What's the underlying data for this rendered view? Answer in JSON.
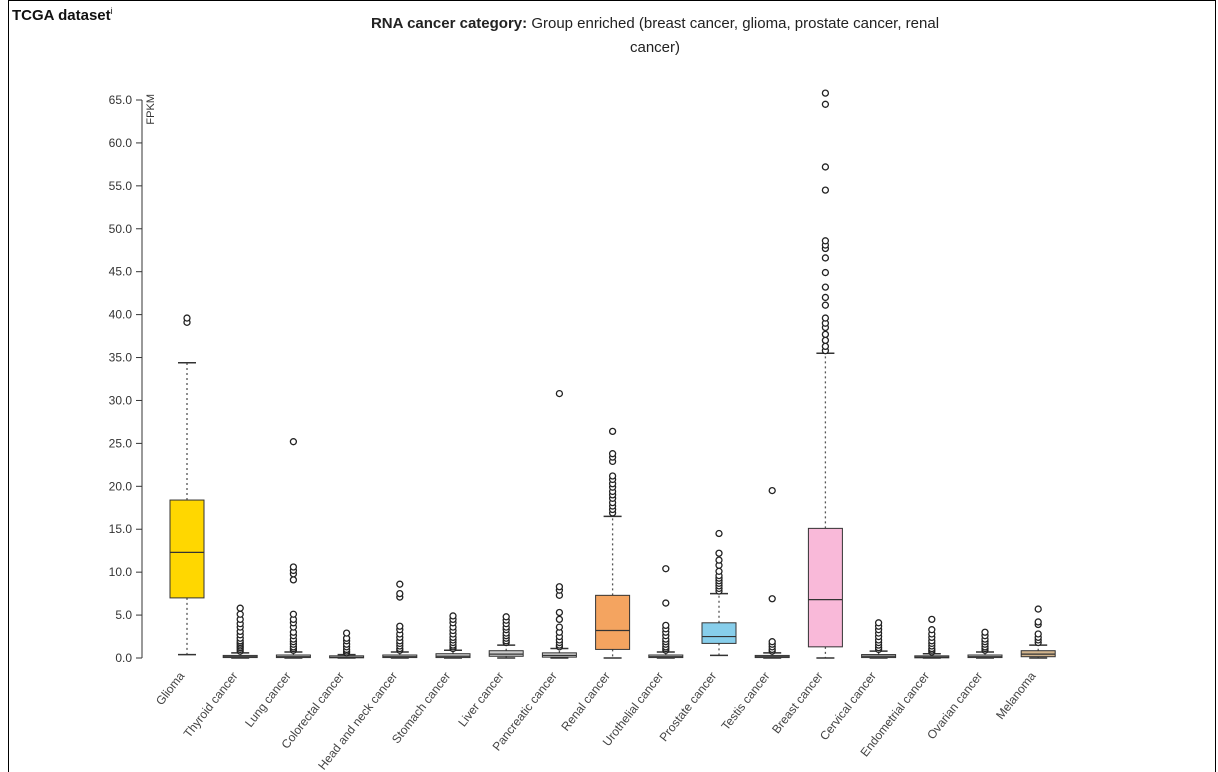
{
  "header": {
    "dataset_label": "TCGA dataset",
    "info_marker": "i",
    "category_label": "RNA cancer category:",
    "category_value": "Group enriched (breast cancer, glioma, prostate cancer, renal cancer)"
  },
  "chart_data": {
    "type": "boxplot",
    "ylabel": "FPKM",
    "ylim": [
      0,
      65
    ],
    "yticks": [
      "0.0",
      "5.0",
      "10.0",
      "15.0",
      "20.0",
      "25.0",
      "30.0",
      "35.0",
      "40.0",
      "45.0",
      "50.0",
      "55.0",
      "60.0",
      "65.0"
    ],
    "grid": false,
    "categories": [
      {
        "name": "Glioma",
        "color": "#FFD700",
        "q1": 7.0,
        "median": 12.3,
        "q3": 18.4,
        "whisker_low": 0.4,
        "whisker_high": 34.4,
        "outliers": [
          39.1,
          39.6
        ]
      },
      {
        "name": "Thyroid cancer",
        "color": "#cccccc",
        "q1": 0.05,
        "median": 0.15,
        "q3": 0.3,
        "whisker_low": 0.0,
        "whisker_high": 0.6,
        "outliers": [
          0.8,
          1.0,
          1.2,
          1.4,
          1.6,
          1.8,
          2.0,
          2.3,
          2.7,
          3.1,
          3.6,
          4.0,
          4.5,
          5.1,
          5.8
        ]
      },
      {
        "name": "Lung cancer",
        "color": "#cccccc",
        "q1": 0.05,
        "median": 0.15,
        "q3": 0.35,
        "whisker_low": 0.0,
        "whisker_high": 0.7,
        "outliers": [
          0.9,
          1.1,
          1.3,
          1.6,
          1.9,
          2.2,
          2.6,
          3.0,
          3.6,
          4.1,
          4.5,
          5.1,
          9.1,
          9.8,
          10.2,
          10.6,
          25.2
        ]
      },
      {
        "name": "Colorectal cancer",
        "color": "#cccccc",
        "q1": 0.02,
        "median": 0.08,
        "q3": 0.2,
        "whisker_low": 0.0,
        "whisker_high": 0.4,
        "outliers": [
          0.6,
          0.8,
          1.0,
          1.3,
          1.6,
          2.0,
          2.3,
          2.9
        ]
      },
      {
        "name": "Head and neck cancer",
        "color": "#cccccc",
        "q1": 0.05,
        "median": 0.15,
        "q3": 0.35,
        "whisker_low": 0.0,
        "whisker_high": 0.7,
        "outliers": [
          0.9,
          1.1,
          1.4,
          1.7,
          2.0,
          2.4,
          2.8,
          3.3,
          3.7,
          7.1,
          7.5,
          8.6
        ]
      },
      {
        "name": "Stomach cancer",
        "color": "#cccccc",
        "q1": 0.05,
        "median": 0.2,
        "q3": 0.5,
        "whisker_low": 0.0,
        "whisker_high": 0.9,
        "outliers": [
          1.1,
          1.3,
          1.5,
          1.8,
          2.1,
          2.4,
          2.8,
          3.2,
          3.6,
          4.1,
          4.5,
          4.9
        ]
      },
      {
        "name": "Liver cancer",
        "color": "#cccccc",
        "q1": 0.2,
        "median": 0.45,
        "q3": 0.85,
        "whisker_low": 0.0,
        "whisker_high": 1.5,
        "outliers": [
          1.8,
          2.0,
          2.3,
          2.6,
          2.9,
          3.3,
          3.6,
          4.0,
          4.4,
          4.8
        ]
      },
      {
        "name": "Pancreatic cancer",
        "color": "#cccccc",
        "q1": 0.1,
        "median": 0.3,
        "q3": 0.6,
        "whisker_low": 0.0,
        "whisker_high": 1.1,
        "outliers": [
          1.3,
          1.5,
          1.8,
          2.1,
          2.5,
          3.0,
          3.6,
          4.5,
          5.3,
          7.3,
          7.9,
          8.3,
          30.8
        ]
      },
      {
        "name": "Renal cancer",
        "color": "#F4A460",
        "q1": 1.0,
        "median": 3.2,
        "q3": 7.3,
        "whisker_low": 0.0,
        "whisker_high": 16.5,
        "outliers": [
          16.9,
          17.3,
          17.7,
          18.1,
          18.6,
          19.0,
          19.4,
          19.9,
          20.3,
          20.8,
          21.2,
          22.9,
          23.4,
          23.8,
          26.4
        ]
      },
      {
        "name": "Urothelial cancer",
        "color": "#cccccc",
        "q1": 0.05,
        "median": 0.15,
        "q3": 0.35,
        "whisker_low": 0.0,
        "whisker_high": 0.7,
        "outliers": [
          0.9,
          1.1,
          1.3,
          1.6,
          1.9,
          2.2,
          2.6,
          3.0,
          3.4,
          3.8,
          6.4,
          10.4
        ]
      },
      {
        "name": "Prostate cancer",
        "color": "#87CEEB",
        "q1": 1.7,
        "median": 2.5,
        "q3": 4.1,
        "whisker_low": 0.3,
        "whisker_high": 7.5,
        "outliers": [
          7.8,
          8.1,
          8.4,
          8.7,
          9.0,
          9.3,
          9.6,
          10.1,
          10.8,
          11.4,
          12.2,
          14.5
        ]
      },
      {
        "name": "Testis cancer",
        "color": "#cccccc",
        "q1": 0.05,
        "median": 0.15,
        "q3": 0.3,
        "whisker_low": 0.0,
        "whisker_high": 0.6,
        "outliers": [
          0.8,
          1.0,
          1.3,
          1.6,
          1.9,
          6.9,
          19.5
        ]
      },
      {
        "name": "Breast cancer",
        "color": "#F9B9D9",
        "q1": 1.3,
        "median": 6.8,
        "q3": 15.1,
        "whisker_low": 0.0,
        "whisker_high": 35.5,
        "outliers": [
          35.8,
          36.3,
          37.0,
          37.7,
          38.5,
          39.0,
          39.6,
          41.1,
          42.0,
          43.2,
          44.9,
          46.6,
          47.7,
          48.1,
          48.6,
          54.5,
          57.2,
          64.5,
          65.8
        ]
      },
      {
        "name": "Cervical cancer",
        "color": "#cccccc",
        "q1": 0.05,
        "median": 0.2,
        "q3": 0.4,
        "whisker_low": 0.0,
        "whisker_high": 0.8,
        "outliers": [
          1.0,
          1.2,
          1.5,
          1.8,
          2.1,
          2.5,
          2.9,
          3.3,
          3.7,
          4.1
        ]
      },
      {
        "name": "Endometrial cancer",
        "color": "#cccccc",
        "q1": 0.02,
        "median": 0.1,
        "q3": 0.25,
        "whisker_low": 0.0,
        "whisker_high": 0.5,
        "outliers": [
          0.7,
          0.9,
          1.1,
          1.4,
          1.7,
          2.0,
          2.4,
          2.8,
          3.3,
          4.5
        ]
      },
      {
        "name": "Ovarian cancer",
        "color": "#cccccc",
        "q1": 0.05,
        "median": 0.15,
        "q3": 0.35,
        "whisker_low": 0.0,
        "whisker_high": 0.7,
        "outliers": [
          0.9,
          1.1,
          1.3,
          1.6,
          1.9,
          2.2,
          2.6,
          3.0
        ]
      },
      {
        "name": "Melanoma",
        "color": "#D2B48C",
        "q1": 0.15,
        "median": 0.45,
        "q3": 0.85,
        "whisker_low": 0.0,
        "whisker_high": 1.5,
        "outliers": [
          1.8,
          2.1,
          2.4,
          2.8,
          3.9,
          4.2,
          5.7
        ]
      }
    ]
  }
}
